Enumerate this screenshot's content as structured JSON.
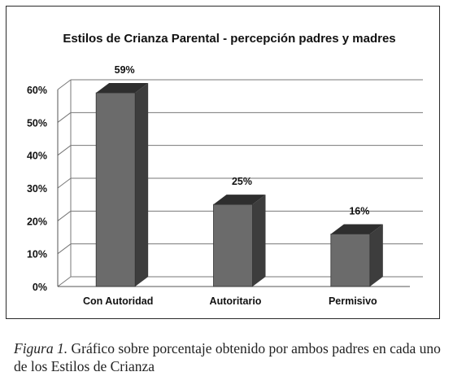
{
  "chart_data": {
    "type": "bar",
    "title": "Estilos de Crianza Parental - percepción padres y madres",
    "categories": [
      "Con Autoridad",
      "Autoritario",
      "Permisivo"
    ],
    "values": [
      59,
      25,
      16
    ],
    "value_labels": [
      "59%",
      "25%",
      "16%"
    ],
    "ylim": [
      0,
      60
    ],
    "yticks": [
      0,
      10,
      20,
      30,
      40,
      50,
      60
    ],
    "ytick_labels": [
      "0%",
      "10%",
      "20%",
      "30%",
      "40%",
      "50%",
      "60%"
    ],
    "xlabel": "",
    "ylabel": "",
    "grid": true,
    "bar_style": "3d",
    "colors": {
      "bar_front": "#6b6b6b",
      "bar_side": "#3d3d3d",
      "bar_top": "#2e2e2e",
      "grid": "#777777",
      "text": "#111111"
    }
  },
  "caption": {
    "label": "Figura 1.",
    "text": "Gráfico sobre porcentaje obtenido por ambos padres en cada uno de los Estilos de Crianza"
  }
}
